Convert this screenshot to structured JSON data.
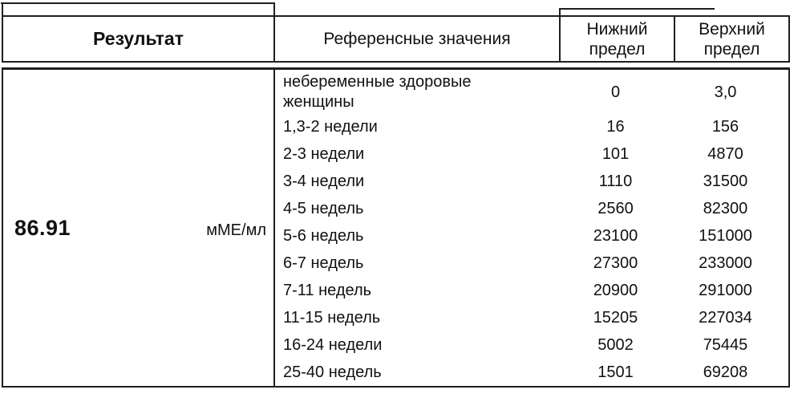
{
  "report": {
    "header": {
      "result": "Результат",
      "reference": "Референсные значения",
      "lower": "Нижний предел",
      "upper": "Верхний предел"
    },
    "result": {
      "value": "86.91",
      "unit": "мМЕ/мл"
    },
    "reference_rows": [
      {
        "label": "небеременные здоровые женщины",
        "lower": "0",
        "upper": "3,0"
      },
      {
        "label": "1,3-2 недели",
        "lower": "16",
        "upper": "156"
      },
      {
        "label": "2-3 недели",
        "lower": "101",
        "upper": "4870"
      },
      {
        "label": "3-4 недели",
        "lower": "1110",
        "upper": "31500"
      },
      {
        "label": "4-5 недель",
        "lower": "2560",
        "upper": "82300"
      },
      {
        "label": "5-6 недель",
        "lower": "23100",
        "upper": "151000"
      },
      {
        "label": "6-7 недель",
        "lower": "27300",
        "upper": "233000"
      },
      {
        "label": "7-11 недель",
        "lower": "20900",
        "upper": "291000"
      },
      {
        "label": "11-15 недель",
        "lower": "15205",
        "upper": "227034"
      },
      {
        "label": "16-24 недели",
        "lower": "5002",
        "upper": "75445"
      },
      {
        "label": "25-40 недель",
        "lower": "1501",
        "upper": "69208"
      }
    ],
    "colors": {
      "border": "#1f1f1f",
      "text": "#111111",
      "background": "#ffffff"
    }
  }
}
